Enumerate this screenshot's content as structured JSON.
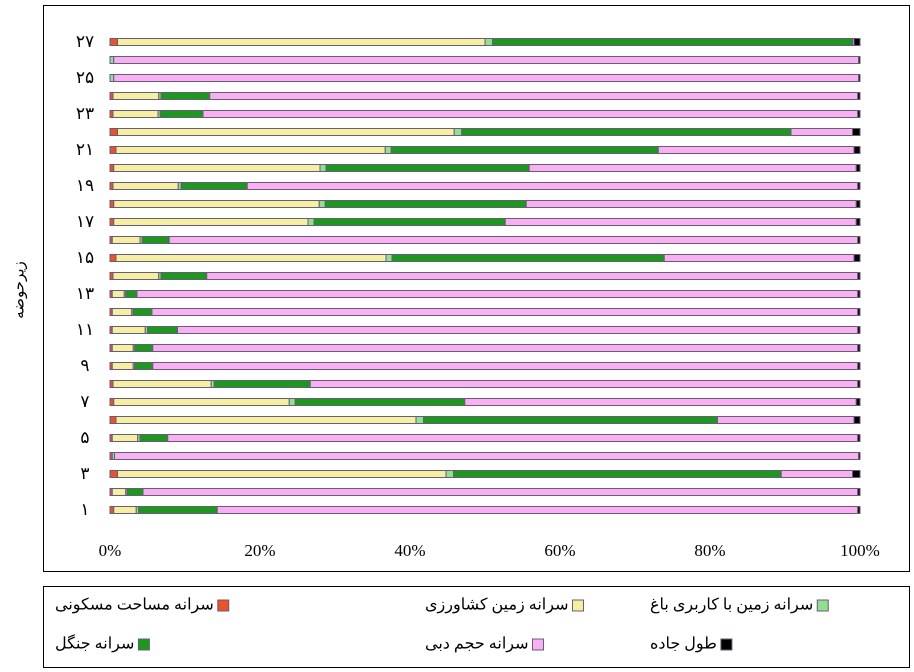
{
  "chart_data": {
    "type": "stacked_hbar",
    "y_label": "زیرحوضه",
    "categories": [
      "۱",
      null,
      "۳",
      null,
      "۵",
      null,
      "۷",
      null,
      "۹",
      null,
      "۱۱",
      null,
      "۱۳",
      null,
      "۱۵",
      null,
      "۱۷",
      null,
      "۱۹",
      null,
      "۲۱",
      null,
      "۲۳",
      null,
      "۲۵",
      null,
      "۲۷"
    ],
    "xlim": [
      0,
      100
    ],
    "xticks": [
      {
        "value": 0,
        "label": "0%"
      },
      {
        "value": 20,
        "label": "20%"
      },
      {
        "value": 40,
        "label": "40%"
      },
      {
        "value": 60,
        "label": "60%"
      },
      {
        "value": 80,
        "label": "80%"
      },
      {
        "value": 100,
        "label": "100%"
      }
    ],
    "series": [
      {
        "name": "سرانه مساحت مسکونی",
        "color": "#e8542a",
        "values": [
          0.5,
          0.3,
          1,
          0.3,
          0.3,
          0.8,
          0.5,
          0.4,
          0.3,
          0.3,
          0.3,
          0.3,
          0.3,
          0.4,
          0.8,
          0.3,
          0.5,
          0.5,
          0.4,
          0.5,
          0.8,
          1,
          0.4,
          0.4,
          0,
          0,
          1
        ]
      },
      {
        "name": "سرانه زمین کشاورزی",
        "color": "#f5f0a0",
        "values": [
          3,
          1.8,
          43.8,
          0,
          3.4,
          40,
          23.4,
          13.1,
          2.8,
          2.8,
          4.4,
          2.6,
          1.6,
          6.1,
          36,
          3.7,
          25.9,
          27.4,
          8.7,
          27.5,
          35.9,
          44.9,
          6,
          6.1,
          0,
          0,
          49
        ]
      },
      {
        "name": "سرانه زمین با کاربری باغ",
        "color": "#8fe08f",
        "values": [
          0.3,
          0.2,
          1,
          0.3,
          0.3,
          1,
          0.8,
          0.4,
          0.2,
          0.2,
          0.3,
          0.2,
          0.2,
          0.3,
          0.8,
          0.3,
          0.8,
          0.8,
          0.4,
          0.8,
          0.8,
          1,
          0.3,
          0.3,
          0.5,
          0.5,
          1
        ]
      },
      {
        "name": "سرانه جنگل",
        "color": "#1a9a1a",
        "values": [
          10.5,
          2.1,
          43.7,
          0,
          3.7,
          39.2,
          22.6,
          12.8,
          2.4,
          2.4,
          4,
          2.5,
          1.5,
          6.1,
          36.3,
          3.6,
          25.5,
          26.8,
          8.8,
          27.1,
          35.6,
          43.9,
          5.7,
          6.5,
          0,
          0,
          48
        ]
      },
      {
        "name": "سرانه حجم دبی",
        "color": "#f7b0f0",
        "values": [
          85.4,
          95.3,
          9.5,
          99.2,
          92,
          18.2,
          52.2,
          73,
          94,
          94,
          90.7,
          94.1,
          96.1,
          86.8,
          25.3,
          91.8,
          46.8,
          44,
          81.4,
          43.6,
          26.1,
          8.2,
          87.3,
          86.4,
          99.3,
          99.3,
          0.2
        ]
      },
      {
        "name": "طول جاده",
        "color": "#000000",
        "values": [
          0.3,
          0.3,
          1,
          0.2,
          0.3,
          0.8,
          0.5,
          0.3,
          0.3,
          0.3,
          0.3,
          0.3,
          0.3,
          0.3,
          0.8,
          0.3,
          0.5,
          0.5,
          0.3,
          0.5,
          0.8,
          1,
          0.3,
          0.3,
          0.2,
          0.2,
          0.8
        ]
      }
    ],
    "legend": "bottom"
  }
}
